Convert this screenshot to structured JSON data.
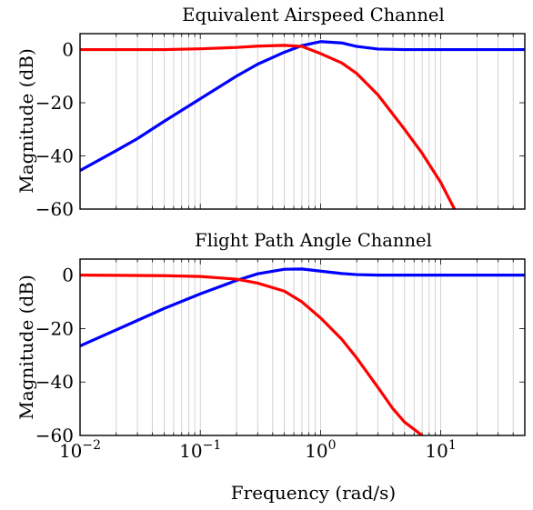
{
  "chart_data": [
    {
      "type": "line",
      "title": "Equivalent Airspeed Channel",
      "ylabel": "Magnitude (dB)",
      "xlabel": "",
      "xscale": "log",
      "xlim": [
        0.01,
        50
      ],
      "ylim": [
        -60,
        6
      ],
      "yticks": [
        0,
        -20,
        -40,
        -60
      ],
      "ytick_labels": [
        "0",
        "−20",
        "−40",
        "−60"
      ],
      "grid": "vertical minor and major on log axis",
      "series": [
        {
          "color": "#0000ff",
          "x": [
            0.01,
            0.02,
            0.03,
            0.05,
            0.1,
            0.2,
            0.3,
            0.5,
            0.7,
            1.0,
            1.5,
            2.0,
            3.0,
            5.0,
            10,
            50
          ],
          "y": [
            -45.5,
            -38,
            -33.5,
            -27,
            -18.5,
            -10,
            -5.5,
            -1,
            1.5,
            3,
            2.5,
            1.2,
            0.2,
            0,
            0,
            0
          ]
        },
        {
          "color": "#ff0000",
          "x": [
            0.01,
            0.05,
            0.1,
            0.2,
            0.3,
            0.5,
            0.7,
            1.0,
            1.5,
            2.0,
            3.0,
            5.0,
            7.0,
            10,
            13
          ],
          "y": [
            0,
            0,
            0.3,
            0.8,
            1.3,
            1.6,
            1.2,
            -1.5,
            -5,
            -9,
            -17,
            -30,
            -39,
            -50,
            -60
          ]
        }
      ]
    },
    {
      "type": "line",
      "title": "Flight Path Angle Channel",
      "ylabel": "Magnitude (dB)",
      "xlabel": "Frequency (rad/s)",
      "xscale": "log",
      "xlim": [
        0.01,
        50
      ],
      "ylim": [
        -60,
        6
      ],
      "yticks": [
        0,
        -20,
        -40,
        -60
      ],
      "ytick_labels": [
        "0",
        "−20",
        "−40",
        "−60"
      ],
      "xticks": [
        0.01,
        0.1,
        1,
        10
      ],
      "xtick_labels": [
        {
          "base": "10",
          "exp": "−2"
        },
        {
          "base": "10",
          "exp": "−1"
        },
        {
          "base": "10",
          "exp": "0"
        },
        {
          "base": "10",
          "exp": "1"
        }
      ],
      "grid": "vertical minor and major on log axis",
      "series": [
        {
          "color": "#0000ff",
          "x": [
            0.01,
            0.02,
            0.05,
            0.1,
            0.2,
            0.3,
            0.5,
            0.7,
            1.0,
            1.5,
            2.0,
            3.0,
            5.0,
            10,
            50
          ],
          "y": [
            -26.5,
            -20.5,
            -12.5,
            -7,
            -2,
            0.5,
            2.2,
            2.3,
            1.5,
            0.6,
            0.2,
            0,
            0,
            0,
            0
          ]
        },
        {
          "color": "#ff0000",
          "x": [
            0.01,
            0.05,
            0.1,
            0.2,
            0.3,
            0.5,
            0.7,
            1.0,
            1.5,
            2.0,
            3.0,
            4.0,
            5.0,
            7.0
          ],
          "y": [
            0,
            -0.2,
            -0.5,
            -1.5,
            -3,
            -6,
            -10,
            -16,
            -24,
            -31,
            -42,
            -50,
            -55,
            -60
          ]
        }
      ]
    }
  ]
}
